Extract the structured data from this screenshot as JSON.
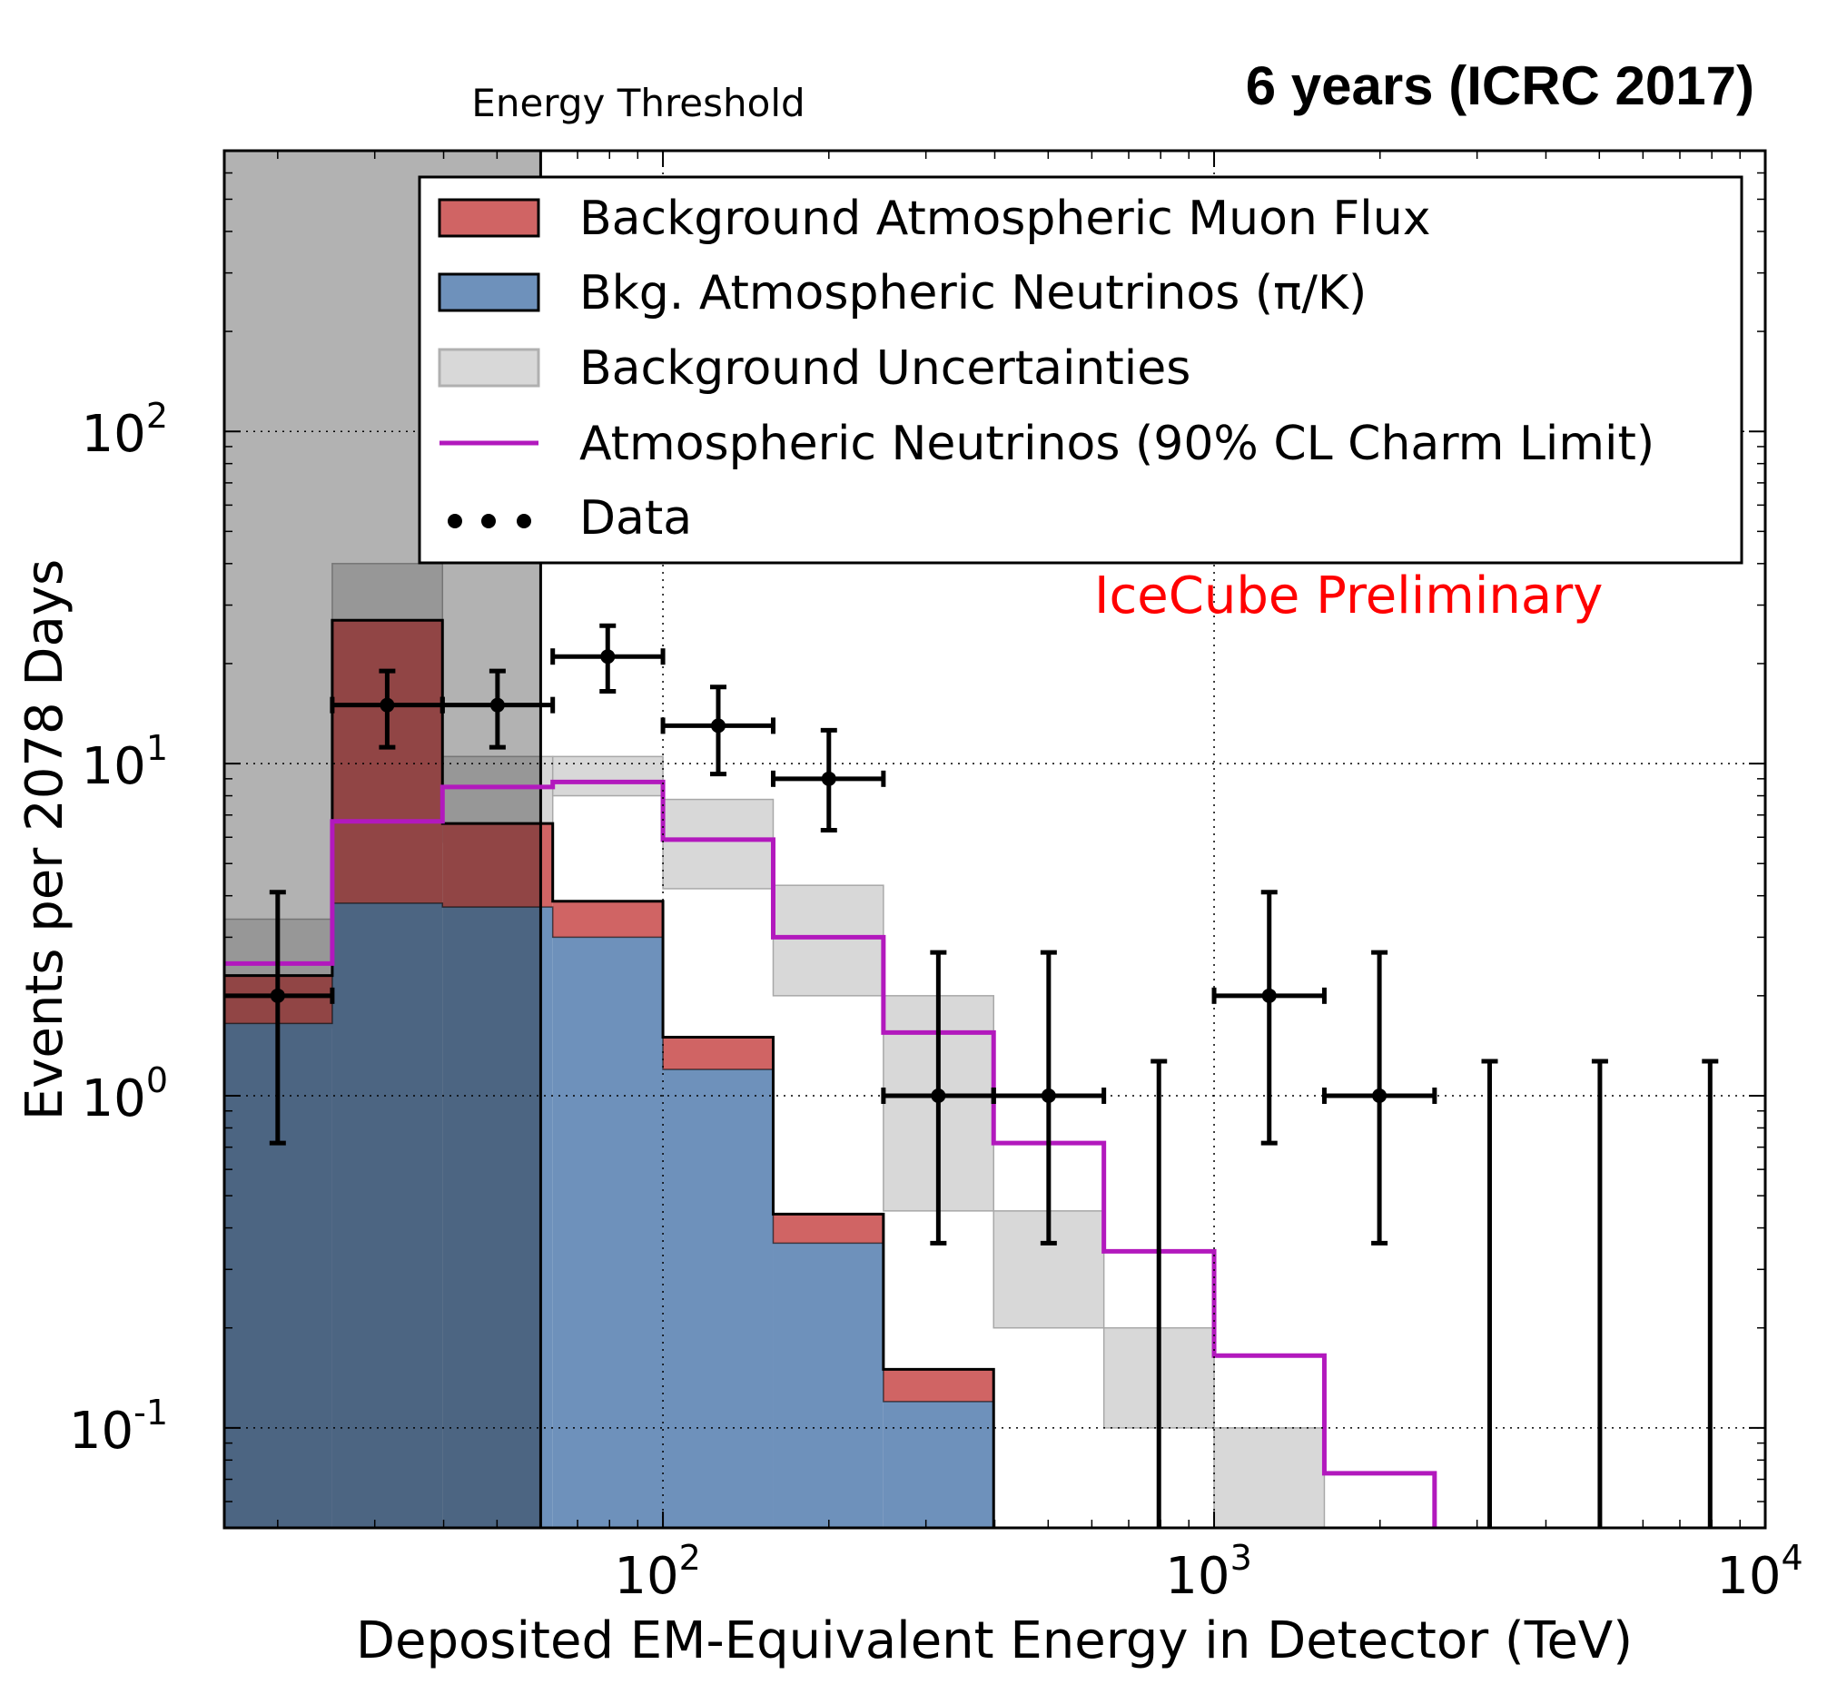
{
  "chart_data": {
    "type": "bar",
    "title": "6 years (ICRC 2017)",
    "xlabel": "Deposited EM-Equivalent Energy in Detector (TeV)",
    "ylabel": "Events per 2078 Days",
    "x_scale": "log",
    "y_scale": "log",
    "xlim": [
      16,
      10000
    ],
    "ylim": [
      0.05,
      700
    ],
    "grid": true,
    "legend_position": "upper right",
    "annotations": {
      "threshold_label": "Energy Threshold",
      "preliminary": "IceCube Preliminary"
    },
    "colors": {
      "muon": "#d06464",
      "neutrino": "#6e91bb",
      "uncertainty": "#d8d8d8",
      "charm": "#b219bd",
      "threshold_shade": "#b4b4b4",
      "preliminary": "#ff0000",
      "data": "#000000"
    },
    "legend": [
      {
        "label": "Background Atmospheric Muon Flux",
        "kind": "patch",
        "color": "#d06464"
      },
      {
        "label": "Bkg. Atmospheric Neutrinos (π/K)",
        "kind": "patch",
        "color": "#6e91bb"
      },
      {
        "label": "Background Uncertainties",
        "kind": "patch",
        "color": "#d8d8d8"
      },
      {
        "label": "Atmospheric Neutrinos (90% CL Charm Limit)",
        "kind": "line",
        "color": "#b219bd"
      },
      {
        "label": "Data",
        "kind": "points",
        "color": "#000000"
      }
    ],
    "x_ticks": [
      {
        "value": 100,
        "base": "10",
        "exp": "2"
      },
      {
        "value": 1000,
        "base": "10",
        "exp": "3"
      },
      {
        "value": 10000,
        "base": "10",
        "exp": "4"
      }
    ],
    "y_ticks": [
      {
        "value": 0.1,
        "base": "10",
        "exp": "-1"
      },
      {
        "value": 1,
        "base": "10",
        "exp": "0"
      },
      {
        "value": 10,
        "base": "10",
        "exp": "1"
      },
      {
        "value": 100,
        "base": "10",
        "exp": "2"
      }
    ],
    "threshold_energy": 60,
    "bin_edges": [
      15.85,
      25.12,
      39.81,
      63.1,
      100,
      158.5,
      251.2,
      398.1,
      631,
      1000,
      1585,
      2512,
      3981,
      6310,
      10000
    ],
    "series": [
      {
        "name": "Background Atmospheric Muon Flux",
        "stack_top": [
          2.3,
          27,
          6.6,
          3.85,
          1.5,
          0.44,
          0.15,
          null,
          null,
          null,
          null,
          null,
          null,
          null
        ]
      },
      {
        "name": "Bkg. Atmospheric Neutrinos (π/K)",
        "values": [
          1.65,
          3.8,
          3.7,
          3.0,
          1.2,
          0.36,
          0.12,
          null,
          null,
          null,
          null,
          null,
          null,
          null
        ]
      },
      {
        "name": "Background Uncertainties",
        "lower": [
          1.6,
          18,
          5.8,
          8.0,
          4.2,
          2.0,
          0.45,
          0.2,
          0.1,
          0.05,
          null,
          null,
          null,
          null
        ],
        "upper": [
          3.4,
          40,
          10.5,
          10.5,
          7.8,
          4.3,
          2.0,
          0.45,
          0.2,
          0.1,
          null,
          null,
          null,
          null
        ]
      },
      {
        "name": "Atmospheric Neutrinos (90% CL Charm Limit)",
        "values": [
          2.5,
          6.7,
          8.5,
          8.8,
          5.9,
          3.0,
          1.55,
          0.72,
          0.34,
          0.165,
          0.073,
          null,
          null,
          null
        ]
      }
    ],
    "data_points": [
      {
        "x": 20,
        "y": 2,
        "xerr": [
          15.85,
          25.12
        ],
        "yerr": [
          0.72,
          4.1
        ]
      },
      {
        "x": 31.6,
        "y": 15,
        "xerr": [
          25.12,
          39.81
        ],
        "yerr": [
          11.2,
          19
        ]
      },
      {
        "x": 50.1,
        "y": 15,
        "xerr": [
          39.81,
          63.1
        ],
        "yerr": [
          11.2,
          19
        ]
      },
      {
        "x": 79.4,
        "y": 21,
        "xerr": [
          63.1,
          100
        ],
        "yerr": [
          16.5,
          26
        ]
      },
      {
        "x": 126,
        "y": 13,
        "xerr": [
          100,
          158.5
        ],
        "yerr": [
          9.3,
          17
        ]
      },
      {
        "x": 200,
        "y": 9,
        "xerr": [
          158.5,
          251.2
        ],
        "yerr": [
          6.3,
          12.6
        ]
      },
      {
        "x": 316,
        "y": 1,
        "xerr": [
          251.2,
          398.1
        ],
        "yerr": [
          0.36,
          2.7
        ]
      },
      {
        "x": 501,
        "y": 1,
        "xerr": [
          398.1,
          631
        ],
        "yerr": [
          0.36,
          2.7
        ]
      },
      {
        "x": 794,
        "y": null,
        "xerr": null,
        "yerr": [
          0.01,
          1.27
        ]
      },
      {
        "x": 1259,
        "y": 2,
        "xerr": [
          1000,
          1585
        ],
        "yerr": [
          0.72,
          4.1
        ]
      },
      {
        "x": 1995,
        "y": 1,
        "xerr": [
          1585,
          2512
        ],
        "yerr": [
          0.36,
          2.7
        ]
      },
      {
        "x": 3162,
        "y": null,
        "xerr": null,
        "yerr": [
          0.01,
          1.27
        ]
      },
      {
        "x": 5012,
        "y": null,
        "xerr": null,
        "yerr": [
          0.01,
          1.27
        ]
      },
      {
        "x": 7943,
        "y": null,
        "xerr": null,
        "yerr": [
          0.01,
          1.27
        ]
      }
    ]
  }
}
